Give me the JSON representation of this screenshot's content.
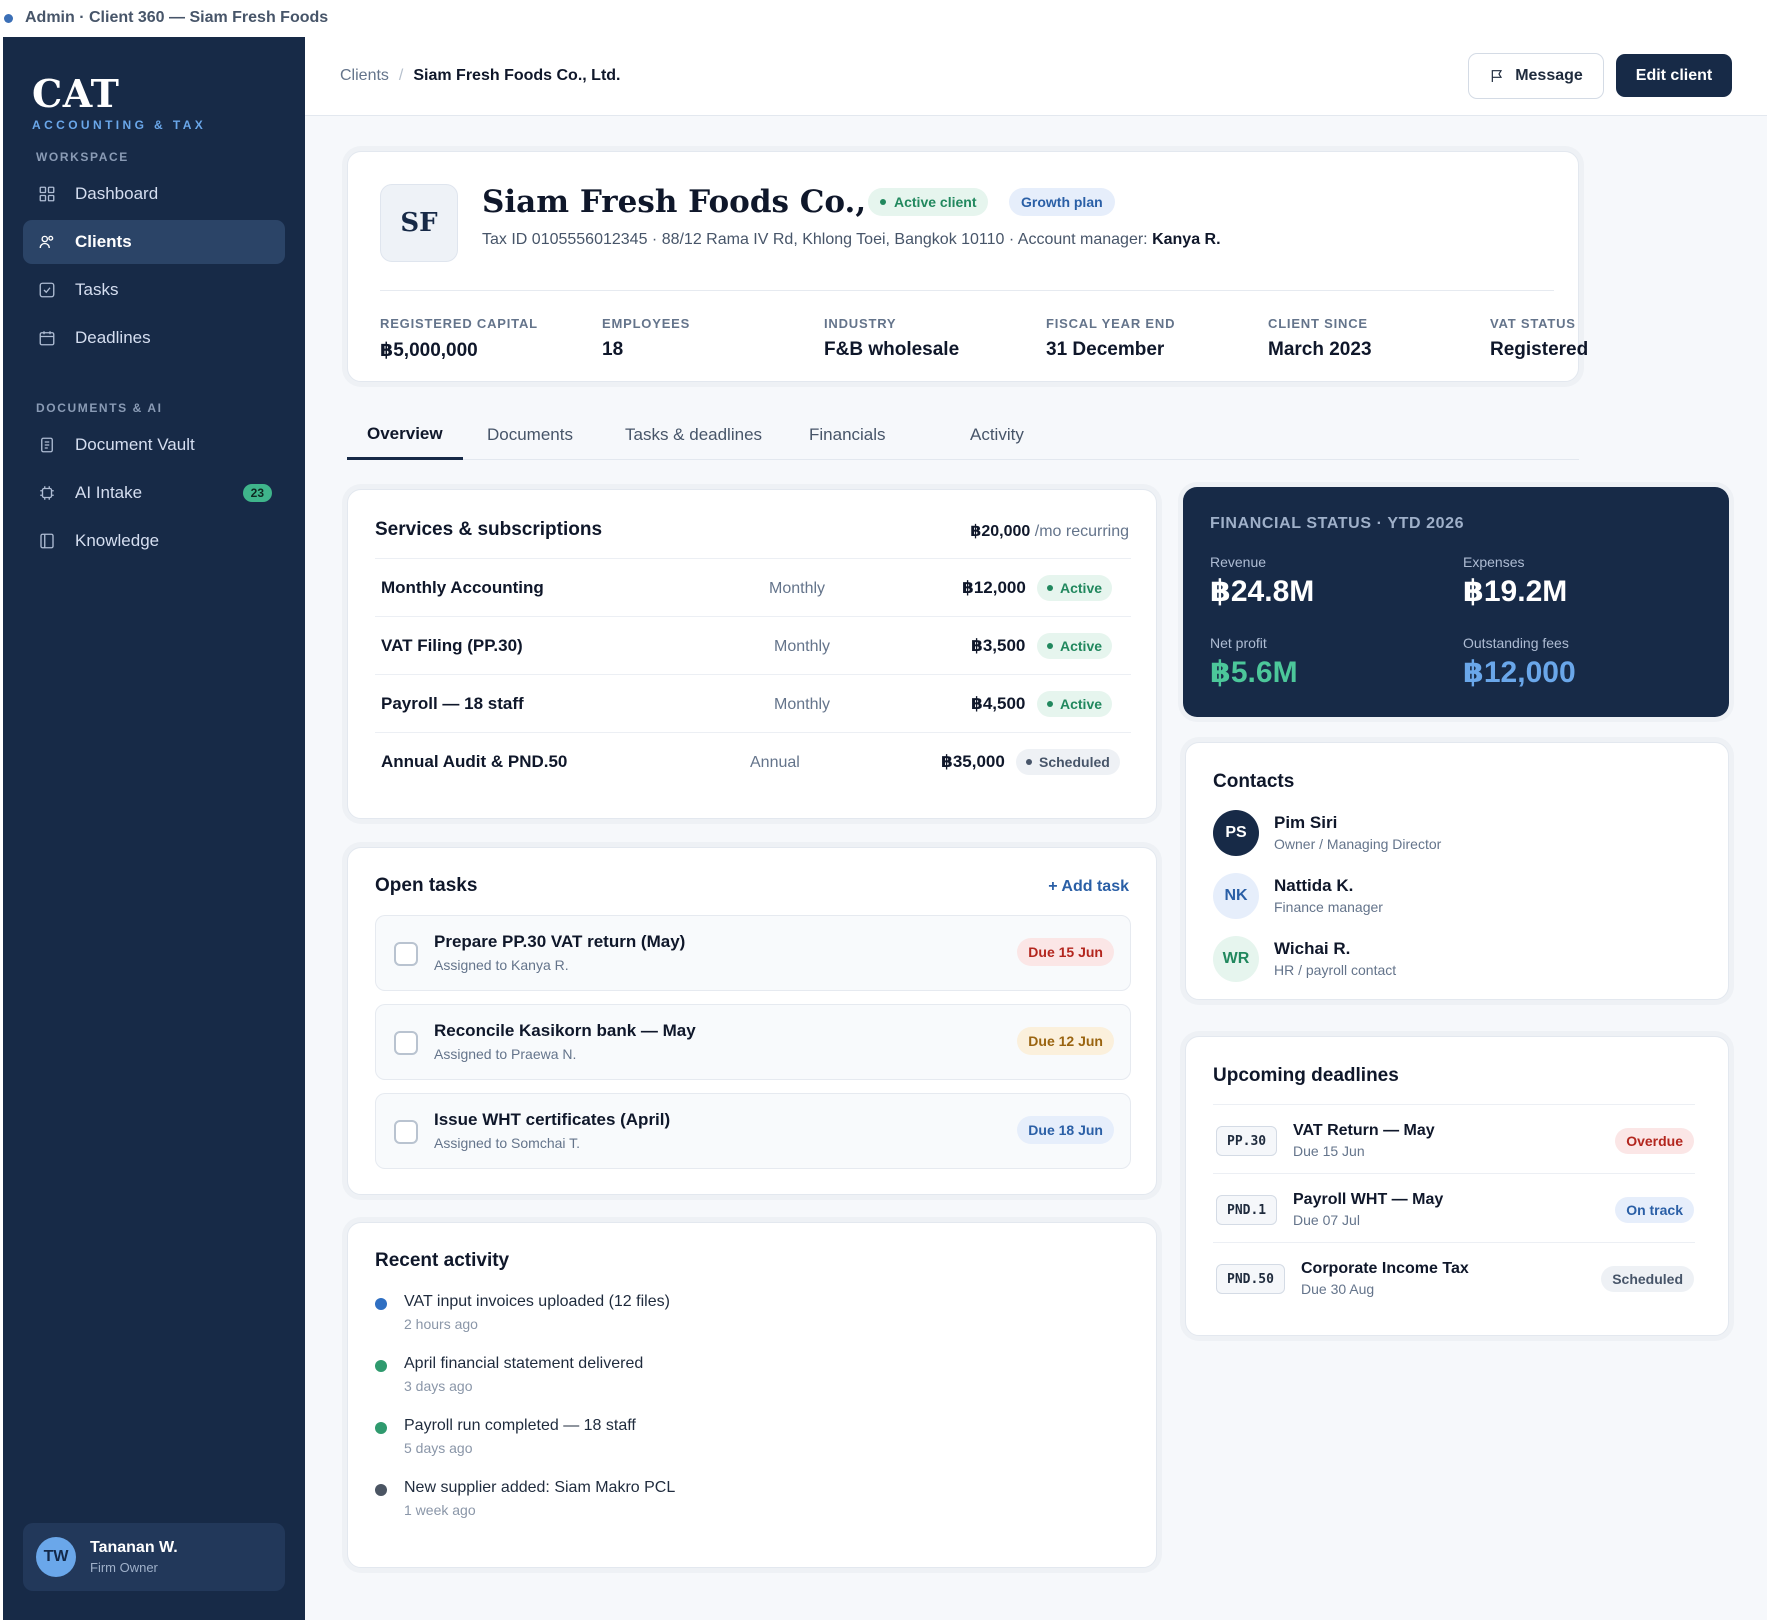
{
  "window": {
    "title": "Admin · Client 360 — Siam Fresh Foods"
  },
  "brand": {
    "name": "CAT",
    "tagline": "ACCOUNTING & TAX"
  },
  "sidebar": {
    "section_workspace": "WORKSPACE",
    "section_docs": "DOCUMENTS & AI",
    "items": [
      {
        "label": "Dashboard",
        "icon": "grid-icon",
        "active": false
      },
      {
        "label": "Clients",
        "icon": "users-icon",
        "active": true
      },
      {
        "label": "Tasks",
        "icon": "checkbox-icon",
        "active": false
      },
      {
        "label": "Deadlines",
        "icon": "calendar-icon",
        "active": false
      },
      {
        "label": "Document Vault",
        "icon": "document-icon",
        "active": false
      },
      {
        "label": "AI Intake",
        "icon": "chip-icon",
        "active": false,
        "badge": "23"
      },
      {
        "label": "Knowledge",
        "icon": "book-icon",
        "active": false
      }
    ],
    "user": {
      "initials": "TW",
      "name": "Tananan W.",
      "role": "Firm Owner"
    }
  },
  "header": {
    "breadcrumb_root": "Clients",
    "breadcrumb_current": "Siam Fresh Foods Co., Ltd.",
    "message_label": "Message",
    "edit_label": "Edit client"
  },
  "client": {
    "initials": "SF",
    "name": "Siam Fresh Foods Co., Ltd.",
    "status_badge": "Active client",
    "plan_badge": "Growth plan",
    "details": "Tax ID 0105556012345 · 88/12 Rama IV Rd, Khlong Toei, Bangkok 10110 · Account manager:",
    "manager": "Kanya R.",
    "stats": [
      {
        "label": "REGISTERED CAPITAL",
        "value": "฿5,000,000"
      },
      {
        "label": "EMPLOYEES",
        "value": "18"
      },
      {
        "label": "INDUSTRY",
        "value": "F&B wholesale"
      },
      {
        "label": "FISCAL YEAR END",
        "value": "31 December"
      },
      {
        "label": "CLIENT SINCE",
        "value": "March 2023"
      },
      {
        "label": "VAT STATUS",
        "value": "Registered"
      }
    ]
  },
  "tabs": [
    "Overview",
    "Documents",
    "Tasks & deadlines",
    "Financials",
    "Activity"
  ],
  "services": {
    "title": "Services & subscriptions",
    "total": "฿20,000",
    "total_suffix": "/mo recurring",
    "rows": [
      {
        "name": "Monthly Accounting",
        "freq": "Monthly",
        "amount": "฿12,000",
        "status": "Active"
      },
      {
        "name": "VAT Filing (PP.30)",
        "freq": "Monthly",
        "amount": "฿3,500",
        "status": "Active"
      },
      {
        "name": "Payroll — 18 staff",
        "freq": "Monthly",
        "amount": "฿4,500",
        "status": "Active"
      },
      {
        "name": "Annual Audit & PND.50",
        "freq": "Annual",
        "amount": "฿35,000",
        "status": "Scheduled"
      }
    ]
  },
  "tasks": {
    "title": "Open tasks",
    "add_label": "+ Add task",
    "rows": [
      {
        "title": "Prepare PP.30 VAT return (May)",
        "assignee": "Assigned to Kanya R.",
        "due": "Due 15 Jun"
      },
      {
        "title": "Reconcile Kasikorn bank — May",
        "assignee": "Assigned to Praewa N.",
        "due": "Due 12 Jun"
      },
      {
        "title": "Issue WHT certificates (April)",
        "assignee": "Assigned to Somchai T.",
        "due": "Due 18 Jun"
      }
    ]
  },
  "activity": {
    "title": "Recent activity",
    "items": [
      {
        "text": "VAT input invoices uploaded (12 files)",
        "time": "2 hours ago",
        "color": "#2f6fc2"
      },
      {
        "text": "April financial statement delivered",
        "time": "3 days ago",
        "color": "#2f9a6e"
      },
      {
        "text": "Payroll run completed — 18 staff",
        "time": "5 days ago",
        "color": "#2f9a6e"
      },
      {
        "text": "New supplier added: Siam Makro PCL",
        "time": "1 week ago",
        "color": "#4b5563"
      }
    ]
  },
  "financial": {
    "title": "FINANCIAL STATUS · YTD 2026",
    "revenue_label": "Revenue",
    "revenue": "฿24.8M",
    "expenses_label": "Expenses",
    "expenses": "฿19.2M",
    "profit_label": "Net profit",
    "profit": "฿5.6M",
    "fees_label": "Outstanding fees",
    "fees": "฿12,000"
  },
  "contacts": {
    "title": "Contacts",
    "items": [
      {
        "initials": "PS",
        "name": "Pim Siri",
        "role": "Owner / Managing Director"
      },
      {
        "initials": "NK",
        "name": "Nattida K.",
        "role": "Finance manager"
      },
      {
        "initials": "WR",
        "name": "Wichai R.",
        "role": "HR / payroll contact"
      }
    ]
  },
  "deadlines": {
    "title": "Upcoming deadlines",
    "rows": [
      {
        "code": "PP.30",
        "title": "VAT Return — May",
        "due": "Due 15 Jun",
        "status": "Overdue"
      },
      {
        "code": "PND.1",
        "title": "Payroll WHT — May",
        "due": "Due 07 Jul",
        "status": "On track"
      },
      {
        "code": "PND.50",
        "title": "Corporate Income Tax",
        "due": "Due 30 Aug",
        "status": "Scheduled"
      }
    ]
  }
}
